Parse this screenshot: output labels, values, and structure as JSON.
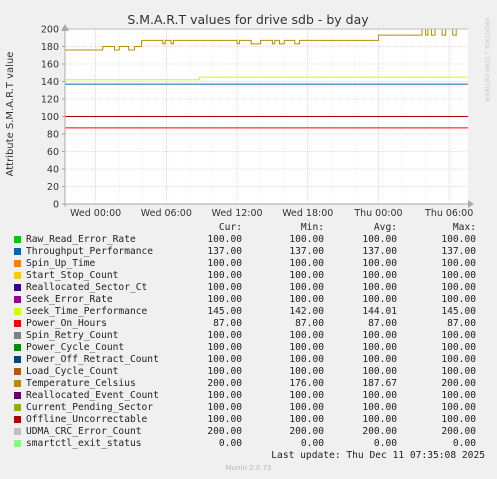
{
  "chart_data": {
    "type": "line",
    "title": "S.M.A.R.T values for drive sdb - by day",
    "ylabel": "Attribute S.M.A.R.T value",
    "ylim": [
      0,
      200
    ],
    "yticks": [
      0,
      20,
      40,
      60,
      80,
      100,
      120,
      140,
      160,
      180,
      200
    ],
    "xticks": [
      "Wed 00:00",
      "Wed 06:00",
      "Wed 12:00",
      "Wed 18:00",
      "Thu 00:00",
      "Thu 06:00"
    ],
    "xtick_hours": [
      0,
      6,
      12,
      18,
      24,
      30
    ],
    "xlim_hours": [
      -2.6,
      31.6
    ],
    "grid": true,
    "columns": [
      "Cur:",
      "Min:",
      "Avg:",
      "Max:"
    ],
    "series": [
      {
        "name": "Raw_Read_Error_Rate",
        "color": "#00cc00",
        "cur": "100.00",
        "min": "100.00",
        "avg": "100.00",
        "max": "100.00",
        "constant": 100
      },
      {
        "name": "Throughput_Performance",
        "color": "#0066b3",
        "cur": "137.00",
        "min": "137.00",
        "avg": "137.00",
        "max": "137.00",
        "constant": 137
      },
      {
        "name": "Spin_Up_Time",
        "color": "#ff8000",
        "cur": "100.00",
        "min": "100.00",
        "avg": "100.00",
        "max": "100.00",
        "constant": 100
      },
      {
        "name": "Start_Stop_Count",
        "color": "#ffcc00",
        "cur": "100.00",
        "min": "100.00",
        "avg": "100.00",
        "max": "100.00",
        "constant": 100
      },
      {
        "name": "Reallocated_Sector_Ct",
        "color": "#330099",
        "cur": "100.00",
        "min": "100.00",
        "avg": "100.00",
        "max": "100.00",
        "constant": 100
      },
      {
        "name": "Seek_Error_Rate",
        "color": "#990099",
        "cur": "100.00",
        "min": "100.00",
        "avg": "100.00",
        "max": "100.00",
        "constant": 100
      },
      {
        "name": "Seek_Time_Performance",
        "color": "#ccff00",
        "cur": "145.00",
        "min": "142.00",
        "avg": "144.01",
        "max": "145.00",
        "points": [
          [
            -2.6,
            142
          ],
          [
            8.8,
            142
          ],
          [
            8.8,
            145
          ],
          [
            31.6,
            145
          ]
        ]
      },
      {
        "name": "Power_On_Hours",
        "color": "#ff0000",
        "cur": "87.00",
        "min": "87.00",
        "avg": "87.00",
        "max": "87.00",
        "constant": 87
      },
      {
        "name": "Spin_Retry_Count",
        "color": "#808080",
        "cur": "100.00",
        "min": "100.00",
        "avg": "100.00",
        "max": "100.00",
        "constant": 100
      },
      {
        "name": "Power_Cycle_Count",
        "color": "#008f00",
        "cur": "100.00",
        "min": "100.00",
        "avg": "100.00",
        "max": "100.00",
        "constant": 100
      },
      {
        "name": "Power_Off_Retract_Count",
        "color": "#00487d",
        "cur": "100.00",
        "min": "100.00",
        "avg": "100.00",
        "max": "100.00",
        "constant": 100
      },
      {
        "name": "Load_Cycle_Count",
        "color": "#b35a00",
        "cur": "100.00",
        "min": "100.00",
        "avg": "100.00",
        "max": "100.00",
        "constant": 100
      },
      {
        "name": "Temperature_Celsius",
        "color": "#b38f00",
        "cur": "200.00",
        "min": "176.00",
        "avg": "187.67",
        "max": "200.00",
        "points": [
          [
            -2.6,
            176
          ],
          [
            0.6,
            176
          ],
          [
            0.6,
            180
          ],
          [
            1.6,
            180
          ],
          [
            1.6,
            176
          ],
          [
            2.0,
            176
          ],
          [
            2.0,
            180
          ],
          [
            2.8,
            180
          ],
          [
            2.8,
            176
          ],
          [
            3.3,
            176
          ],
          [
            3.3,
            180
          ],
          [
            3.9,
            180
          ],
          [
            3.9,
            187
          ],
          [
            5.7,
            187
          ],
          [
            5.7,
            183
          ],
          [
            5.9,
            183
          ],
          [
            5.9,
            187
          ],
          [
            6.4,
            187
          ],
          [
            6.4,
            183
          ],
          [
            6.6,
            183
          ],
          [
            6.6,
            187
          ],
          [
            12.0,
            187
          ],
          [
            12.0,
            183
          ],
          [
            12.2,
            183
          ],
          [
            12.2,
            187
          ],
          [
            13.2,
            187
          ],
          [
            13.2,
            183
          ],
          [
            14.0,
            183
          ],
          [
            14.0,
            187
          ],
          [
            15.0,
            187
          ],
          [
            15.0,
            183
          ],
          [
            15.2,
            183
          ],
          [
            15.2,
            187
          ],
          [
            15.6,
            187
          ],
          [
            15.6,
            183
          ],
          [
            16.0,
            183
          ],
          [
            16.0,
            187
          ],
          [
            16.9,
            187
          ],
          [
            16.9,
            183
          ],
          [
            17.3,
            183
          ],
          [
            17.3,
            187
          ],
          [
            24.0,
            187
          ],
          [
            24.0,
            193
          ],
          [
            27.7,
            193
          ],
          [
            27.7,
            200
          ],
          [
            28.0,
            200
          ],
          [
            28.0,
            193
          ],
          [
            28.2,
            193
          ],
          [
            28.2,
            200
          ],
          [
            28.5,
            200
          ],
          [
            28.5,
            193
          ],
          [
            28.8,
            193
          ],
          [
            28.8,
            200
          ],
          [
            29.4,
            200
          ],
          [
            29.4,
            193
          ],
          [
            29.7,
            193
          ],
          [
            29.7,
            200
          ],
          [
            30.3,
            200
          ],
          [
            30.3,
            193
          ],
          [
            30.6,
            193
          ],
          [
            30.6,
            200
          ],
          [
            31.6,
            200
          ]
        ]
      },
      {
        "name": "Reallocated_Event_Count",
        "color": "#6b006b",
        "cur": "100.00",
        "min": "100.00",
        "avg": "100.00",
        "max": "100.00",
        "constant": 100
      },
      {
        "name": "Current_Pending_Sector",
        "color": "#8fb300",
        "cur": "100.00",
        "min": "100.00",
        "avg": "100.00",
        "max": "100.00",
        "constant": 100
      },
      {
        "name": "Offline_Uncorrectable",
        "color": "#b30000",
        "cur": "100.00",
        "min": "100.00",
        "avg": "100.00",
        "max": "100.00",
        "constant": 100
      },
      {
        "name": "UDMA_CRC_Error_Count",
        "color": "#bebebe",
        "cur": "200.00",
        "min": "200.00",
        "avg": "200.00",
        "max": "200.00",
        "constant": 200
      },
      {
        "name": "smartctl_exit_status",
        "color": "#80ff80",
        "cur": "0.00",
        "min": "0.00",
        "avg": "0.00",
        "max": "0.00",
        "constant": 0
      }
    ]
  },
  "last_update": "Last update: Thu Dec 11 07:35:08 2025",
  "munin_version": "Munin 2.0.73",
  "watermark": "RRDTOOL / TOBI OETIKER",
  "colors": {
    "background": "#f0f0f0",
    "plot_bg": "#ffffff",
    "grid": "#ffaaaa",
    "axis": "#aaaaaa"
  }
}
